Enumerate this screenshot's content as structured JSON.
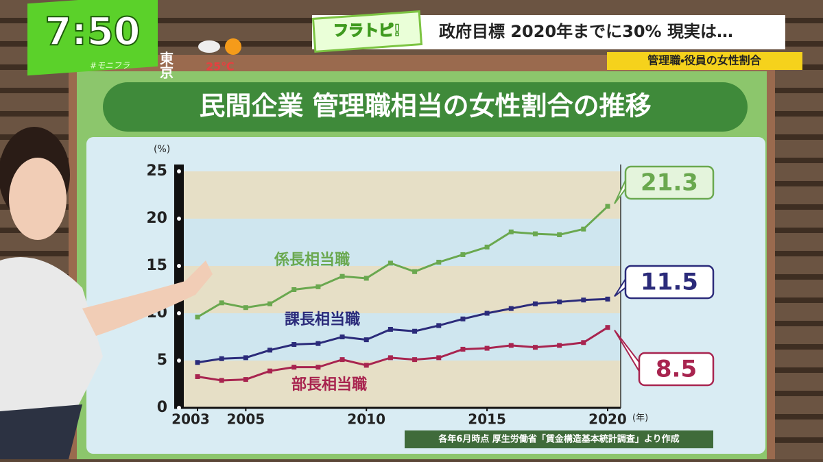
{
  "broadcast": {
    "time": "7:50",
    "hashtag": "#モニフラ",
    "city": "東京",
    "temperature": "25℃",
    "logo": "フラトピ!",
    "headline": "政府目標  2020年までに30%  現実は…",
    "subheadline": "管理職・役員の女性割合"
  },
  "chart_data": {
    "type": "line",
    "title": "民間企業  管理職相当の女性割合の推移",
    "y_unit": "(%)",
    "x_unit": "(年)",
    "x": [
      2003,
      2004,
      2005,
      2006,
      2007,
      2008,
      2009,
      2010,
      2011,
      2012,
      2013,
      2014,
      2015,
      2016,
      2017,
      2018,
      2019,
      2020
    ],
    "series": [
      {
        "name": "係長相当職",
        "color": "#6aa84f",
        "values": [
          9.6,
          11.1,
          10.6,
          11.0,
          12.5,
          12.8,
          13.9,
          13.7,
          15.3,
          14.4,
          15.4,
          16.2,
          17.0,
          18.6,
          18.4,
          18.3,
          18.9,
          21.3
        ]
      },
      {
        "name": "課長相当職",
        "color": "#2b2b7a",
        "values": [
          4.8,
          5.2,
          5.3,
          6.1,
          6.7,
          6.8,
          7.5,
          7.2,
          8.3,
          8.1,
          8.7,
          9.4,
          10.0,
          10.5,
          11.0,
          11.2,
          11.4,
          11.5
        ]
      },
      {
        "name": "部長相当職",
        "color": "#a8244f",
        "values": [
          3.3,
          2.9,
          3.0,
          3.9,
          4.3,
          4.3,
          5.1,
          4.5,
          5.3,
          5.1,
          5.3,
          6.2,
          6.3,
          6.6,
          6.4,
          6.6,
          6.9,
          8.5
        ]
      }
    ],
    "xlim": [
      2003,
      2020
    ],
    "xticks": [
      2003,
      2005,
      2010,
      2015,
      2020
    ],
    "ylim": [
      0,
      25
    ],
    "yticks": [
      0,
      5,
      10,
      15,
      20,
      25
    ],
    "source": "各年6月時点  厚生労働省「賃金構造基本統計調査」より作成"
  }
}
